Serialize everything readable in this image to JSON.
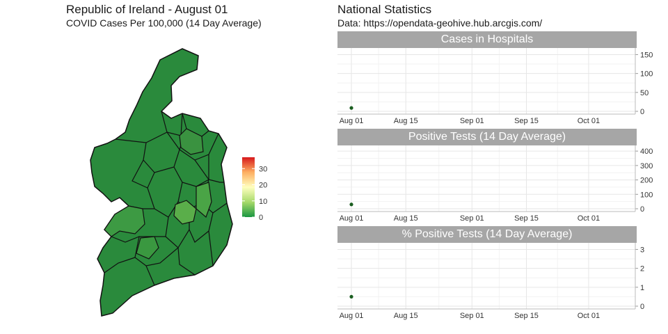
{
  "map": {
    "title": "Republic of Ireland - August 01",
    "subtitle": "COVID Cases Per 100,000 (14 Day Average)",
    "legend": {
      "ticks": [
        0,
        10,
        20,
        30
      ],
      "range": [
        0,
        37
      ],
      "colors": [
        "#1a9641",
        "#a6d96a",
        "#ffffbf",
        "#fdae61",
        "#d7191c"
      ]
    },
    "colors": {
      "base": "#2a8a3c",
      "light": "#5aae4a",
      "mid": "#3a9a40",
      "border": "#111111"
    }
  },
  "stats": {
    "title": "National Statistics",
    "subtitle": "Data: https://opendata-geohive.hub.arcgis.com/",
    "point_color": "#1b5e20"
  },
  "chart_data": [
    {
      "type": "scatter",
      "title": "Cases in Hospitals",
      "x_ticks": [
        "Aug 01",
        "Aug 15",
        "Sep 01",
        "Sep 15",
        "Oct 01"
      ],
      "x_range": [
        "2020-08-01",
        "2020-10-13"
      ],
      "y_ticks": [
        0,
        50,
        100,
        150
      ],
      "ylim": [
        0,
        160
      ],
      "points": [
        {
          "x": "2020-08-01",
          "y": 9
        }
      ],
      "grid": true,
      "y_axis_position": "right"
    },
    {
      "type": "scatter",
      "title": "Positive Tests (14 Day Average)",
      "x_ticks": [
        "Aug 01",
        "Aug 15",
        "Sep 01",
        "Sep 15",
        "Oct 01"
      ],
      "x_range": [
        "2020-08-01",
        "2020-10-13"
      ],
      "y_ticks": [
        0,
        100,
        200,
        300,
        400
      ],
      "ylim": [
        0,
        420
      ],
      "points": [
        {
          "x": "2020-08-01",
          "y": 30
        }
      ],
      "grid": true,
      "y_axis_position": "right"
    },
    {
      "type": "scatter",
      "title": "% Positive Tests (14 Day Average)",
      "x_ticks": [
        "Aug 01",
        "Aug 15",
        "Sep 01",
        "Sep 15",
        "Oct 01"
      ],
      "x_range": [
        "2020-08-01",
        "2020-10-13"
      ],
      "y_ticks": [
        0,
        1,
        2,
        3
      ],
      "ylim": [
        0,
        3.2
      ],
      "points": [
        {
          "x": "2020-08-01",
          "y": 0.5
        }
      ],
      "grid": true,
      "y_axis_position": "right"
    }
  ]
}
